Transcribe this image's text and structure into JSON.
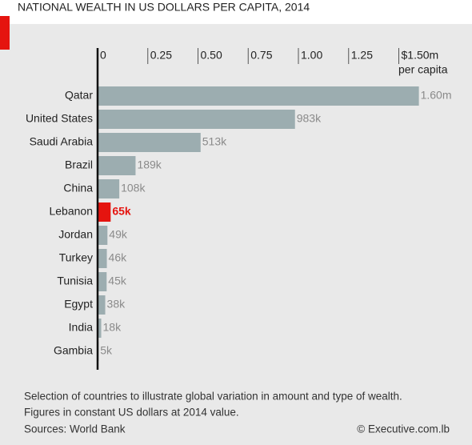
{
  "chart_data": {
    "type": "bar",
    "orientation": "horizontal",
    "title": "NATIONAL WEALTH IN US DOLLARS PER CAPITA, 2014",
    "categories": [
      "Qatar",
      "United States",
      "Saudi Arabia",
      "Brazil",
      "China",
      "Lebanon",
      "Jordan",
      "Turkey",
      "Tunisia",
      "Egypt",
      "India",
      "Gambia"
    ],
    "values": [
      1.6,
      0.983,
      0.513,
      0.189,
      0.108,
      0.065,
      0.049,
      0.046,
      0.045,
      0.038,
      0.018,
      0.005
    ],
    "value_labels": [
      "1.60m",
      "983k",
      "513k",
      "189k",
      "108k",
      "65k",
      "49k",
      "46k",
      "45k",
      "38k",
      "18k",
      "5k"
    ],
    "colors": [
      "#9cadb0",
      "#9cadb0",
      "#9cadb0",
      "#9cadb0",
      "#9cadb0",
      "#e5140f",
      "#9cadb0",
      "#9cadb0",
      "#9cadb0",
      "#9cadb0",
      "#9cadb0",
      "#9cadb0"
    ],
    "xlim": [
      0,
      1.75
    ],
    "xticks": [
      0,
      0.25,
      {
        "value": 0.5,
        "label": "0.50"
      },
      0.75,
      {
        "value": 1,
        "label": "1.00"
      },
      1.25,
      {
        "value": 1.5,
        "label": "$1.50m"
      }
    ],
    "x_axis_label": "per capita",
    "notes": [
      "Selection of countries to illustrate global variation in amount and type of wealth.",
      "Figures in constant US dollars at 2014 value."
    ],
    "source": "Sources: World Bank",
    "credit": "© Executive.com.lb"
  }
}
